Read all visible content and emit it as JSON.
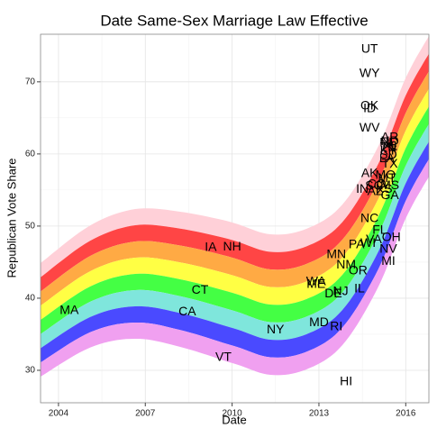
{
  "chart_data": {
    "type": "scatter",
    "title": "Date Same-Sex Marriage Law Effective",
    "x_label": "Date",
    "y_label": "Republican Vote Share",
    "labels": [
      "MA",
      "CA",
      "CT",
      "IA",
      "NH",
      "VT",
      "NY",
      "WA",
      "ME",
      "MD",
      "RI",
      "DE",
      "MN",
      "NJ",
      "NM",
      "IL",
      "HI",
      "OR",
      "PA",
      "WI",
      "VA",
      "NC",
      "IN",
      "UT",
      "WY",
      "OK",
      "ID",
      "WV",
      "AK",
      "SC",
      "AZ",
      "CO",
      "NV",
      "MI",
      "OH",
      "FL",
      "AR",
      "ND",
      "NE",
      "TN",
      "KY",
      "SD",
      "LA",
      "TX",
      "KS",
      "MO",
      "MT",
      "MS",
      "GA",
      "AL"
    ],
    "x": [
      2004.37,
      2008.45,
      2008.89,
      2009.26,
      2010.0,
      2009.7,
      2011.5,
      2012.9,
      2012.9,
      2013.0,
      2013.6,
      2013.5,
      2013.6,
      2013.75,
      2013.94,
      2014.4,
      2013.94,
      2014.35,
      2014.3,
      2014.7,
      2014.9,
      2014.75,
      2014.5,
      2014.75,
      2014.75,
      2014.75,
      2014.75,
      2014.75,
      2014.75,
      2014.9,
      2014.95,
      2015.0,
      2015.4,
      2015.4,
      2015.5,
      2015.1,
      2015.45,
      2015.45,
      2015.4,
      2015.4,
      2015.4,
      2015.4,
      2015.35,
      2015.45,
      2015.25,
      2015.3,
      2015.35,
      2015.45,
      2015.45,
      2015.45
    ],
    "values": [
      38.25,
      38.1,
      41.1,
      47.0,
      47.1,
      31.75,
      35.6,
      42.25,
      41.9,
      36.6,
      36.0,
      40.6,
      46.0,
      40.9,
      44.6,
      41.25,
      28.4,
      43.75,
      47.4,
      47.6,
      48.1,
      51.0,
      55.1,
      74.5,
      71.1,
      66.6,
      66.25,
      63.6,
      57.25,
      55.5,
      54.75,
      55.75,
      46.75,
      45.1,
      48.4,
      49.4,
      62.25,
      61.7,
      61.5,
      60.9,
      60.4,
      59.8,
      59.3,
      58.6,
      55.1,
      57.0,
      56.6,
      55.6,
      54.2,
      61.0
    ],
    "xlim": [
      2003.38,
      2016.8
    ],
    "ylim": [
      25.5,
      76.6
    ],
    "xticks": [
      2004,
      2007,
      2010,
      2013,
      2016
    ],
    "yticks": [
      30,
      40,
      50,
      60,
      70
    ],
    "grid": true
  }
}
